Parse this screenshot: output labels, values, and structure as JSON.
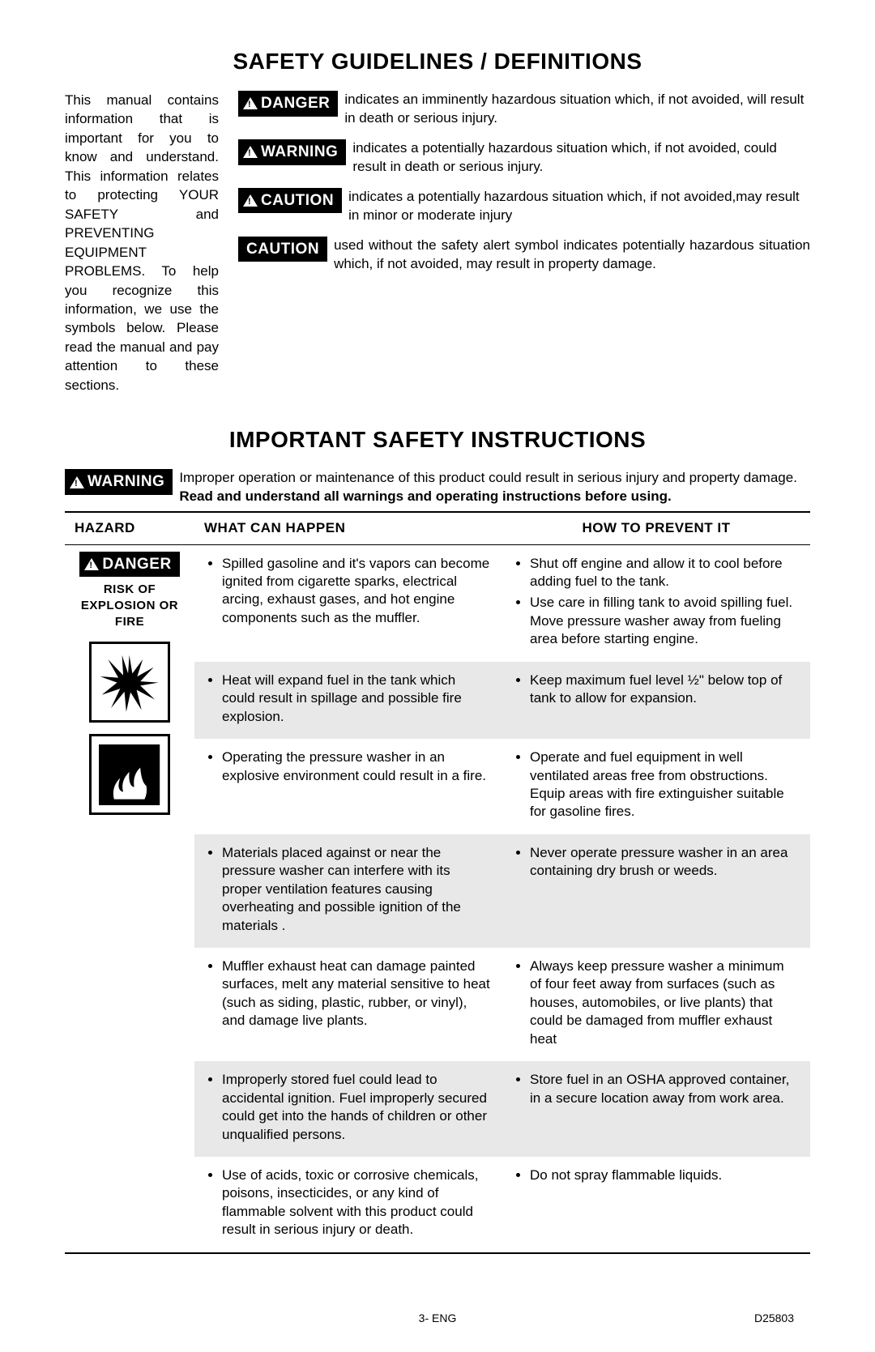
{
  "heading1": "SAFETY GUIDELINES / DEFINITIONS",
  "intro": "This manual contains information that is important for you to know and understand. This information relates to protecting YOUR SAFETY and PREVENTING EQUIPMENT PROBLEMS. To help you recognize this information, we use the symbols below. Please read the manual and pay attention to these sections.",
  "defs": {
    "danger": {
      "label": "DANGER",
      "text": "indicates an imminently hazardous situation which, if not avoided, will result in death or serious injury."
    },
    "warning": {
      "label": "WARNING",
      "text": "indicates a potentially hazardous situation which, if not avoided, could result in death or serious injury."
    },
    "caution": {
      "label": "CAUTION",
      "text": "indicates a potentially hazardous situation which, if not avoided,may result in minor or moderate injury"
    },
    "caution2": {
      "label": "CAUTION",
      "text": "used without the safety alert symbol indicates potentially hazardous situation which, if not avoided, may result in property damage."
    }
  },
  "heading2": "IMPORTANT SAFETY INSTRUCTIONS",
  "warning2": {
    "label": "WARNING",
    "lead": "Improper operation or maintenance of this product could result in serious injury and property damage. ",
    "bold": "Read and understand all warnings and operating instructions before using."
  },
  "table": {
    "head": {
      "c1": "HAZARD",
      "c2": "WHAT CAN HAPPEN",
      "c3": "HOW TO PREVENT IT"
    },
    "hazard": {
      "label": "DANGER",
      "risk": "RISK OF EXPLOSION OR FIRE"
    },
    "rows": [
      {
        "happen": [
          "Spilled gasoline and it's vapors can become ignited from cigarette sparks, electrical arcing, exhaust gases, and hot engine components such as the muffler."
        ],
        "prevent": [
          "Shut off engine and allow it to cool before adding fuel to the tank.",
          "Use care in filling tank to avoid spilling fuel. Move pressure washer away from fueling area before starting engine."
        ]
      },
      {
        "happen": [
          "Heat will expand fuel in the tank which could  result in spillage and possible fire explosion."
        ],
        "prevent": [
          "Keep maximum fuel level ½\" below top of tank to allow for expansion."
        ]
      },
      {
        "happen": [
          "Operating the pressure washer in an explosive environment could result in a fire."
        ],
        "prevent": [
          "Operate and fuel equipment in well ventilated areas free from obstructions. Equip areas with fire extinguisher suitable for gasoline fires."
        ]
      },
      {
        "happen": [
          "Materials placed against or near the pressure washer can interfere with its proper ventilation features causing overheating and possible ignition of the materials ."
        ],
        "prevent": [
          "Never operate pressure washer in an area containing dry brush or weeds."
        ]
      },
      {
        "happen": [
          "Muffler exhaust heat can damage painted surfaces, melt any material sensitive to heat (such as siding, plastic, rubber, or vinyl), and damage live plants."
        ],
        "prevent": [
          "Always keep pressure washer a minimum of four feet away from surfaces (such as houses, automobiles, or live plants) that could be damaged from muffler exhaust heat"
        ]
      },
      {
        "happen": [
          "Improperly stored fuel could lead to accidental ignition. Fuel improperly secured could get into the hands of children or other unqualified persons."
        ],
        "prevent": [
          "Store fuel in an OSHA approved container, in a secure location away from work area."
        ]
      },
      {
        "happen": [
          "Use of acids, toxic or corrosive chemicals, poisons, insecticides, or any kind of flammable solvent with this product could result in serious injury or death."
        ],
        "prevent": [
          "Do not spray flammable liquids."
        ]
      }
    ]
  },
  "footer": {
    "page": "3- ENG",
    "doc": "D25803"
  },
  "colors": {
    "bg": "#ffffff",
    "text": "#000000",
    "shade": "#e8e8e8"
  }
}
